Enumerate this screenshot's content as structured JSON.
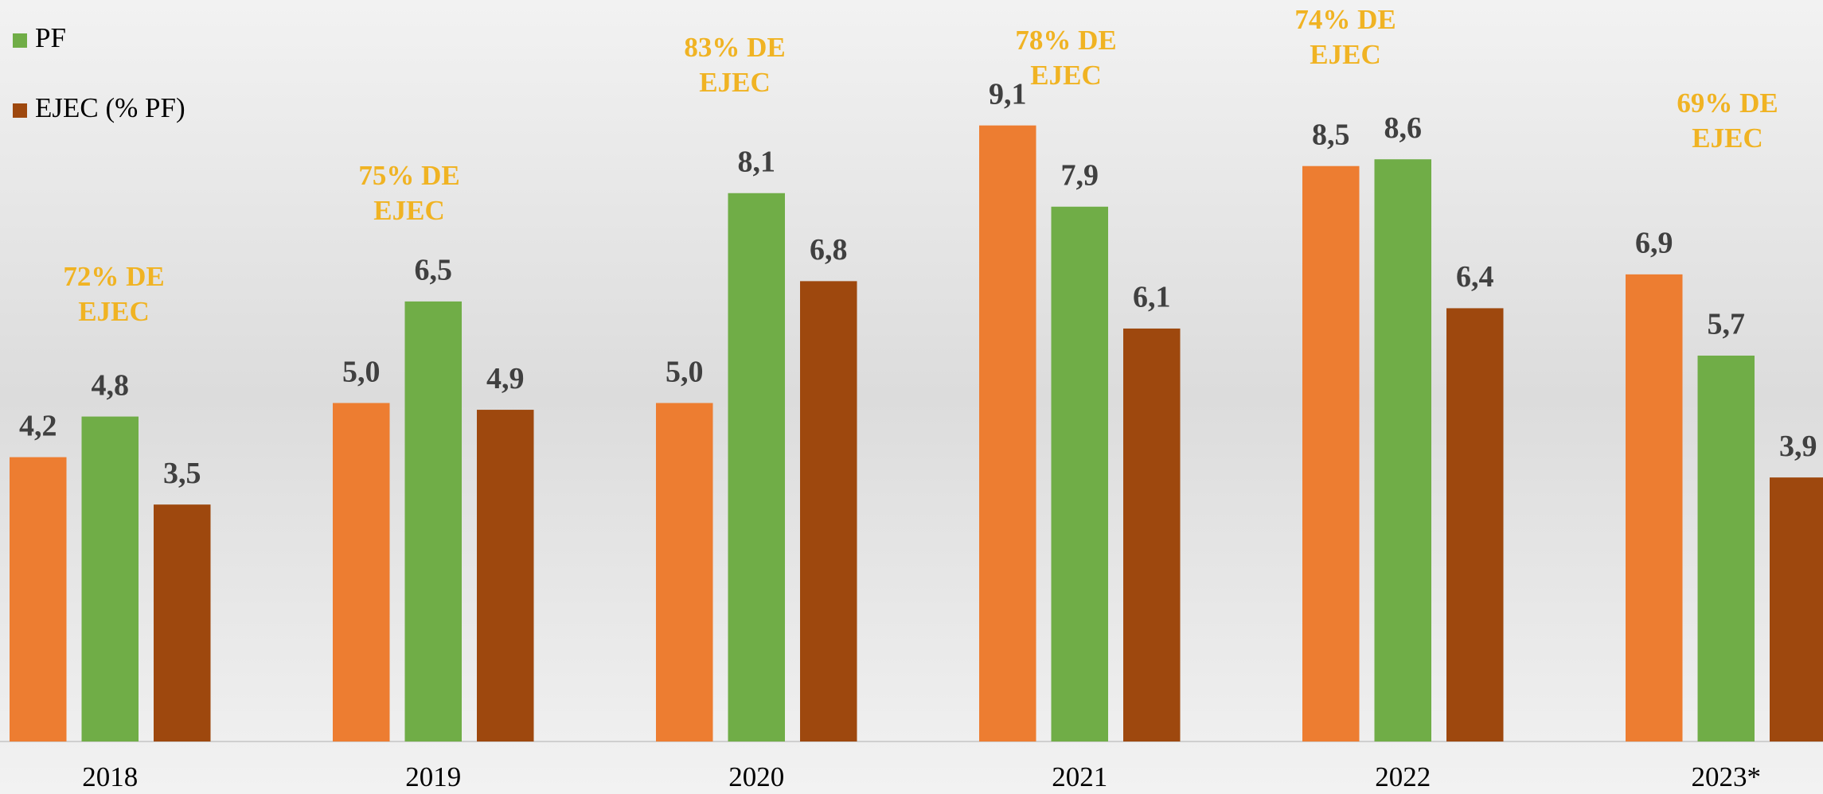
{
  "chart_data": {
    "type": "bar",
    "categories": [
      "2018",
      "2019",
      "2020",
      "2021",
      "2022",
      "2023*"
    ],
    "series": [
      {
        "color": "#ed7d31",
        "values": [
          4.2,
          5.0,
          5.0,
          9.1,
          8.5,
          6.9
        ],
        "value_labels": [
          "4,2",
          "5,0",
          "5,0",
          "9,1",
          "8,5",
          "6,9"
        ]
      },
      {
        "name": "PF",
        "color": "#70ad47",
        "values": [
          4.8,
          6.5,
          8.1,
          7.9,
          8.6,
          5.7
        ],
        "value_labels": [
          "4,8",
          "6,5",
          "8,1",
          "7,9",
          "8,6",
          "5,7"
        ]
      },
      {
        "name": "EJEC (% PF)",
        "color": "#9e480e",
        "values": [
          3.5,
          4.9,
          6.8,
          6.1,
          6.4,
          3.9
        ],
        "value_labels": [
          "3,5",
          "4,9",
          "6,8",
          "6,1",
          "6,4",
          "3,9"
        ]
      }
    ],
    "annotations": [
      {
        "lines": [
          "72% DE",
          "EJEC"
        ]
      },
      {
        "lines": [
          "75% DE",
          "EJEC"
        ]
      },
      {
        "lines": [
          "83% DE",
          "EJEC"
        ]
      },
      {
        "lines": [
          "78% DE",
          "EJEC"
        ]
      },
      {
        "lines": [
          "74% DE",
          "EJEC"
        ]
      },
      {
        "lines": [
          "69% DE",
          "EJEC"
        ]
      }
    ],
    "ylim": [
      0,
      11
    ]
  }
}
